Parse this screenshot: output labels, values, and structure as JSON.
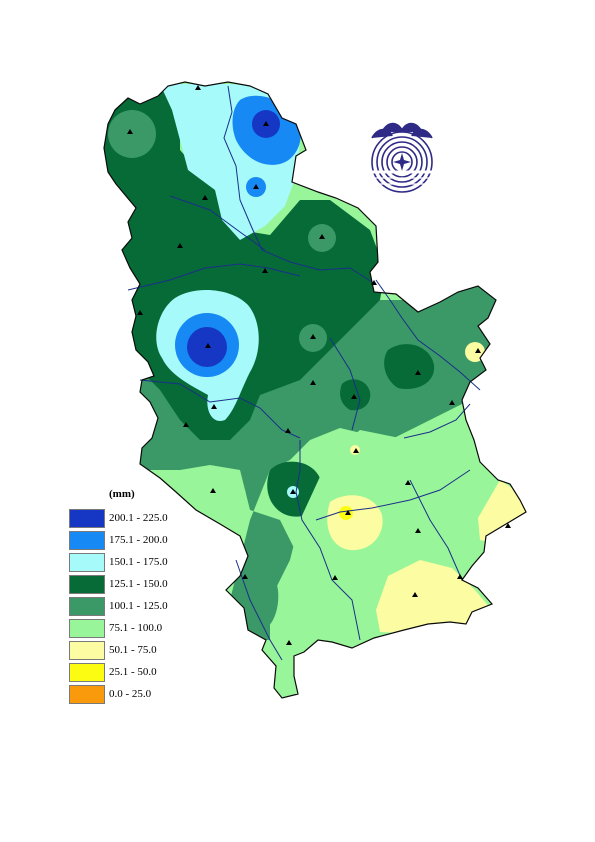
{
  "legend": {
    "title": "(mm)",
    "classes": [
      {
        "label": "200.1 - 225.0",
        "color": "#1537c4"
      },
      {
        "label": "175.1 - 200.0",
        "color": "#1689f4"
      },
      {
        "label": "150.1 - 175.0",
        "color": "#a6fafa"
      },
      {
        "label": "125.1 - 150.0",
        "color": "#066b37"
      },
      {
        "label": "100.1 - 125.0",
        "color": "#3a9966"
      },
      {
        "label": "75.1 - 100.0",
        "color": "#99f59a"
      },
      {
        "label": "50.1 - 75.0",
        "color": "#fcfca3"
      },
      {
        "label": "25.1 - 50.0",
        "color": "#fcfc13"
      },
      {
        "label": "0.0 - 25.0",
        "color": "#f89a0b"
      }
    ]
  },
  "colors": {
    "border": "#0a0a0a",
    "river": "#1b2f8a",
    "logo": "#2e2a86",
    "station": "#000000"
  },
  "logo": {
    "icon": "hydrometeorological-service-emblem-icon"
  }
}
